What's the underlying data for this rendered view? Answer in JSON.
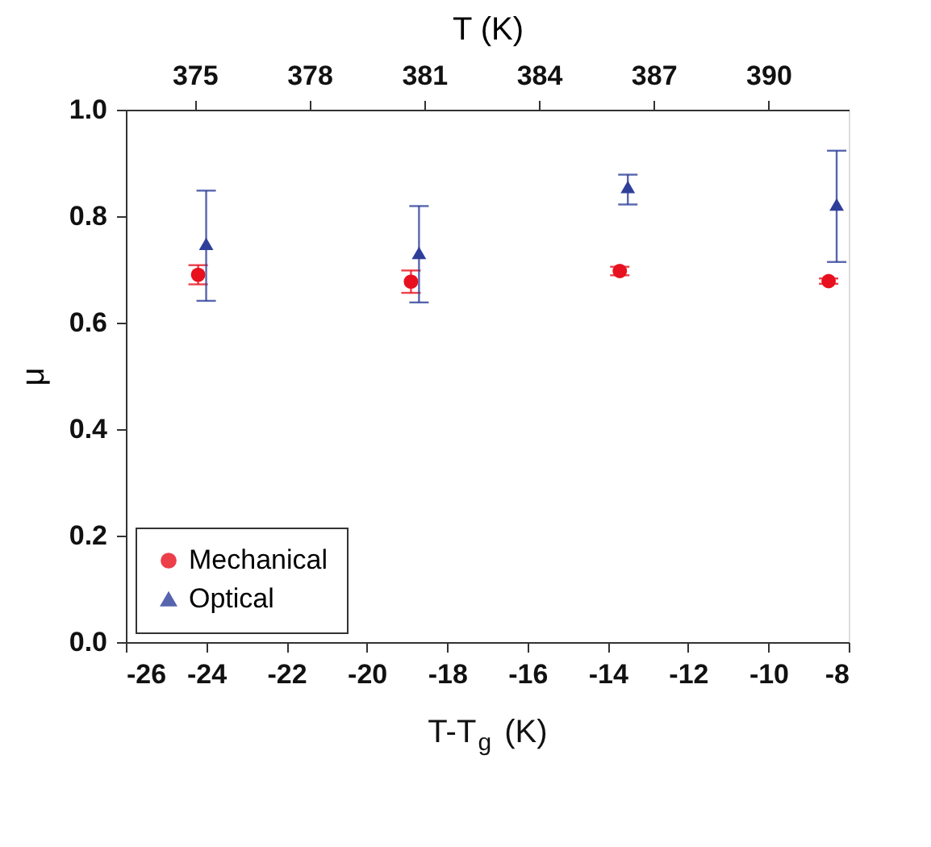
{
  "chart_data": {
    "type": "scatter",
    "xlabel": "T-T$_{g}$ (K)",
    "ylabel": "μ",
    "x2label": "T (K)",
    "xlim": [
      -26,
      -8
    ],
    "xticks": [
      -26,
      -24,
      -22,
      -20,
      -18,
      -16,
      -14,
      -12,
      -10,
      -8
    ],
    "ylim": [
      0,
      1
    ],
    "yticks": [
      {
        "value": 0,
        "label": "0.0"
      },
      {
        "value": 0.2,
        "label": "0.2"
      },
      {
        "value": 0.4,
        "label": "0.4"
      },
      {
        "value": 0.6,
        "label": "0.6"
      },
      {
        "value": 0.8,
        "label": "0.8"
      },
      {
        "value": 1,
        "label": "1.0"
      }
    ],
    "x2lim": [
      373.2,
      392.1
    ],
    "x2ticks": [
      375,
      378,
      381,
      384,
      387,
      390
    ],
    "grid": false,
    "legend": "bottom left",
    "series": [
      {
        "name": "Mechanical",
        "color": "#e8101e",
        "marker": "circle",
        "x": [
          -24.2,
          -18.9,
          -13.7,
          -8.5
        ],
        "values": [
          0.69,
          0.677,
          0.697,
          0.678
        ],
        "errors": [
          0.018,
          0.021,
          0.008,
          0.005
        ]
      },
      {
        "name": "Optical",
        "color": "#2e3f9a",
        "marker": "triangle",
        "x": [
          -24.0,
          -18.7,
          -13.5,
          -8.3
        ],
        "values": [
          0.748,
          0.731,
          0.855,
          0.822
        ],
        "errors": [
          [
            0.641,
            0.848
          ],
          [
            0.638,
            0.819
          ],
          [
            0.822,
            0.878
          ],
          [
            0.714,
            0.923
          ]
        ]
      }
    ]
  }
}
